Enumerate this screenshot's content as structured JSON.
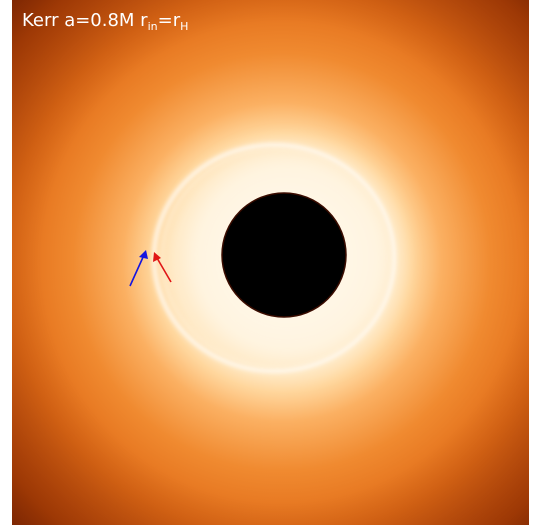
{
  "title": {
    "prefix": "Kerr a=0.8M r",
    "sub1": "in",
    "mid": "=r",
    "sub2": "H"
  },
  "colors": {
    "shadow": "#000000",
    "ring": "#fff6e6",
    "disk_outer": "#c84a08",
    "disk_mid": "#f08a30",
    "glow": "#ffe4b8",
    "arrow_outer": "#1515e0",
    "arrow_inner": "#e01515"
  },
  "icons": {
    "outer_arrow": "blue-arrow-icon",
    "inner_arrow": "red-arrow-icon"
  }
}
